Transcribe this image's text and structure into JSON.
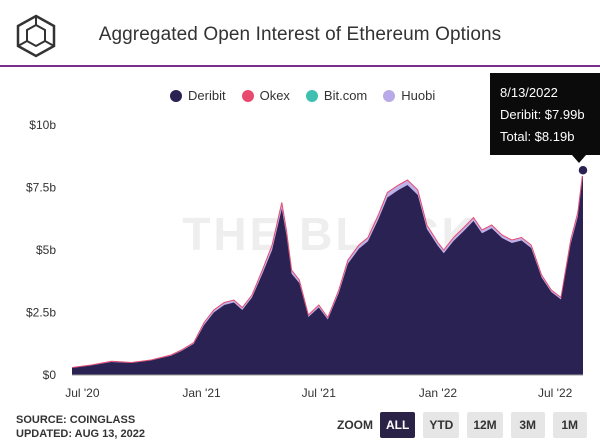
{
  "header": {
    "title": "Aggregated Open Interest of Ethereum Options",
    "logo_icon": "theblock-cube-icon"
  },
  "legend": [
    {
      "name": "Deribit",
      "color": "#2b2254"
    },
    {
      "name": "Okex",
      "color": "#e84a6f"
    },
    {
      "name": "Bit.com",
      "color": "#3fbfb0"
    },
    {
      "name": "Huobi",
      "color": "#b9a9e6"
    }
  ],
  "watermark": "THE BLOCK",
  "tooltip": {
    "date": "8/13/2022",
    "deribit": "Deribit: $7.99b",
    "total": "Total: $8.19b"
  },
  "footer": {
    "source": "SOURCE: COINGLASS",
    "updated": "UPDATED: AUG 13, 2022"
  },
  "zoom": {
    "label": "ZOOM",
    "buttons": [
      "ALL",
      "YTD",
      "12M",
      "3M",
      "1M"
    ],
    "active": "ALL"
  },
  "chart_data": {
    "type": "area",
    "title": "Aggregated Open Interest of Ethereum Options",
    "y_ticks": [
      "$0",
      "$2.5b",
      "$5b",
      "$7.5b",
      "$10b"
    ],
    "x_ticks": [
      "Jul '20",
      "Jan '21",
      "Jul '21",
      "Jan '22",
      "Jul '22"
    ],
    "ylim": [
      0,
      10
    ],
    "grid": false,
    "legend_position": "top",
    "series": [
      {
        "name": "Deribit",
        "color": "#2b2254"
      },
      {
        "name": "Okex",
        "color": "#e84a6f"
      },
      {
        "name": "Bit.com",
        "color": "#3fbfb0"
      },
      {
        "name": "Huobi",
        "color": "#b9a9e6"
      }
    ],
    "x": [
      "2020-06-15",
      "2020-07-15",
      "2020-08-15",
      "2020-09-15",
      "2020-10-15",
      "2020-11-15",
      "2020-12-01",
      "2020-12-20",
      "2021-01-05",
      "2021-01-20",
      "2021-02-05",
      "2021-02-20",
      "2021-03-05",
      "2021-03-20",
      "2021-04-05",
      "2021-04-20",
      "2021-05-05",
      "2021-05-12",
      "2021-05-20",
      "2021-06-01",
      "2021-06-15",
      "2021-07-01",
      "2021-07-15",
      "2021-08-01",
      "2021-08-15",
      "2021-09-01",
      "2021-09-15",
      "2021-10-01",
      "2021-10-15",
      "2021-11-01",
      "2021-11-15",
      "2021-12-01",
      "2021-12-15",
      "2022-01-01",
      "2022-01-10",
      "2022-01-25",
      "2022-02-10",
      "2022-02-25",
      "2022-03-10",
      "2022-03-25",
      "2022-04-10",
      "2022-04-25",
      "2022-05-10",
      "2022-05-25",
      "2022-06-10",
      "2022-06-25",
      "2022-07-10",
      "2022-07-25",
      "2022-08-05",
      "2022-08-13"
    ],
    "total": [
      0.3,
      0.4,
      0.55,
      0.5,
      0.6,
      0.8,
      1.0,
      1.3,
      2.1,
      2.6,
      2.9,
      3.0,
      2.7,
      3.2,
      4.2,
      5.2,
      6.9,
      5.8,
      4.2,
      3.8,
      2.4,
      2.8,
      2.3,
      3.4,
      4.6,
      5.2,
      5.5,
      6.4,
      7.3,
      7.6,
      7.8,
      7.4,
      6.0,
      5.3,
      5.0,
      5.5,
      5.9,
      6.3,
      5.8,
      6.0,
      5.6,
      5.4,
      5.5,
      5.2,
      4.0,
      3.4,
      3.1,
      5.4,
      6.5,
      8.19
    ],
    "deribit": [
      0.28,
      0.38,
      0.52,
      0.48,
      0.58,
      0.77,
      0.96,
      1.25,
      2.0,
      2.5,
      2.8,
      2.9,
      2.6,
      3.1,
      4.05,
      5.0,
      6.65,
      5.6,
      4.05,
      3.68,
      2.32,
      2.7,
      2.22,
      3.28,
      4.45,
      5.05,
      5.35,
      6.22,
      7.1,
      7.4,
      7.6,
      7.2,
      5.84,
      5.16,
      4.87,
      5.36,
      5.76,
      6.16,
      5.67,
      5.87,
      5.48,
      5.28,
      5.38,
      5.08,
      3.9,
      3.32,
      3.02,
      5.25,
      6.33,
      7.99
    ]
  }
}
